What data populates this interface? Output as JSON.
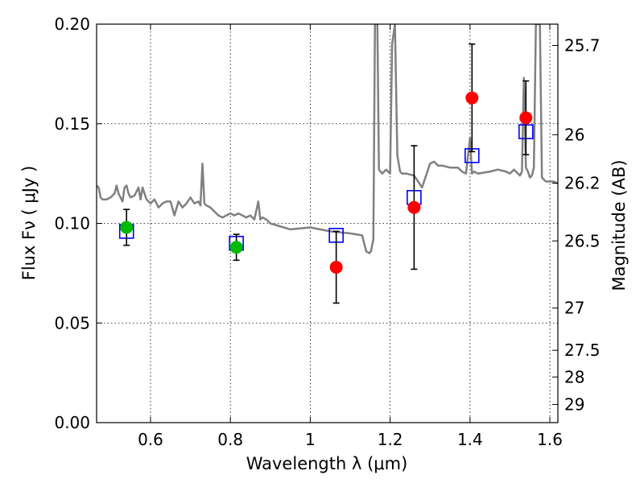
{
  "chart_data": {
    "type": "scatter",
    "xlabel": "Wavelength  λ (μm)",
    "ylabel": "Flux  Fν  ( μJy )",
    "y2label": "Magnitude (AB)",
    "xlim": [
      0.465,
      1.62
    ],
    "ylim": [
      0.0,
      0.2
    ],
    "grid": true,
    "x_ticks": [
      {
        "value": 0.6,
        "label": "0.6"
      },
      {
        "value": 0.8,
        "label": "0.8"
      },
      {
        "value": 1.0,
        "label": "1"
      },
      {
        "value": 1.2,
        "label": "1.2"
      },
      {
        "value": 1.4,
        "label": "1.4"
      },
      {
        "value": 1.6,
        "label": "1.6"
      }
    ],
    "y_ticks": [
      {
        "value": 0.0,
        "label": "0.00"
      },
      {
        "value": 0.05,
        "label": "0.05"
      },
      {
        "value": 0.1,
        "label": "0.10"
      },
      {
        "value": 0.15,
        "label": "0.15"
      },
      {
        "value": 0.2,
        "label": "0.20"
      }
    ],
    "mag_ticks": [
      {
        "flux": 0.1893,
        "label": "25.7"
      },
      {
        "flux": 0.1445,
        "label": "26"
      },
      {
        "flux": 0.1202,
        "label": "26.2"
      },
      {
        "flux": 0.0912,
        "label": "26.5"
      },
      {
        "flux": 0.0575,
        "label": "27"
      },
      {
        "flux": 0.0363,
        "label": "27.5"
      },
      {
        "flux": 0.0229,
        "label": "28"
      },
      {
        "flux": 0.0091,
        "label": "29"
      }
    ],
    "series": [
      {
        "name": "model-spectrum",
        "kind": "line",
        "color": "#808080",
        "x": [
          0.465,
          0.47,
          0.475,
          0.48,
          0.49,
          0.5,
          0.51,
          0.515,
          0.52,
          0.53,
          0.535,
          0.54,
          0.545,
          0.55,
          0.56,
          0.57,
          0.575,
          0.58,
          0.585,
          0.59,
          0.6,
          0.61,
          0.62,
          0.63,
          0.64,
          0.65,
          0.66,
          0.67,
          0.68,
          0.69,
          0.7,
          0.71,
          0.72,
          0.725,
          0.73,
          0.735,
          0.74,
          0.75,
          0.76,
          0.77,
          0.78,
          0.79,
          0.8,
          0.81,
          0.82,
          0.83,
          0.84,
          0.85,
          0.86,
          0.87,
          0.875,
          0.88,
          0.89,
          0.9,
          0.95,
          1.0,
          1.05,
          1.1,
          1.13,
          1.14,
          1.148,
          1.152,
          1.158,
          1.162,
          1.165,
          1.168,
          1.172,
          1.18,
          1.19,
          1.2,
          1.205,
          1.212,
          1.218,
          1.225,
          1.23,
          1.24,
          1.26,
          1.28,
          1.3,
          1.31,
          1.315,
          1.32,
          1.33,
          1.35,
          1.37,
          1.38,
          1.39,
          1.4,
          1.405,
          1.41,
          1.42,
          1.45,
          1.47,
          1.49,
          1.5,
          1.51,
          1.52,
          1.525,
          1.53,
          1.535,
          1.54,
          1.545,
          1.55,
          1.555,
          1.56,
          1.565,
          1.57,
          1.575,
          1.58,
          1.59,
          1.6,
          1.61,
          1.62
        ],
        "y": [
          0.119,
          0.118,
          0.113,
          0.112,
          0.112,
          0.113,
          0.115,
          0.119,
          0.115,
          0.111,
          0.118,
          0.119,
          0.115,
          0.113,
          0.114,
          0.118,
          0.112,
          0.118,
          0.115,
          0.112,
          0.11,
          0.112,
          0.108,
          0.11,
          0.111,
          0.111,
          0.104,
          0.111,
          0.108,
          0.11,
          0.113,
          0.11,
          0.111,
          0.109,
          0.13,
          0.11,
          0.109,
          0.108,
          0.106,
          0.104,
          0.103,
          0.104,
          0.105,
          0.104,
          0.105,
          0.104,
          0.103,
          0.104,
          0.102,
          0.111,
          0.102,
          0.103,
          0.102,
          0.1,
          0.097,
          0.098,
          0.096,
          0.095,
          0.094,
          0.086,
          0.085,
          0.086,
          0.092,
          0.2,
          0.2,
          0.2,
          0.127,
          0.125,
          0.127,
          0.125,
          0.19,
          0.2,
          0.134,
          0.126,
          0.125,
          0.125,
          0.124,
          0.118,
          0.13,
          0.131,
          0.13,
          0.129,
          0.129,
          0.128,
          0.128,
          0.126,
          0.125,
          0.143,
          0.125,
          0.126,
          0.125,
          0.126,
          0.127,
          0.126,
          0.125,
          0.127,
          0.125,
          0.124,
          0.126,
          0.173,
          0.128,
          0.126,
          0.123,
          0.124,
          0.128,
          0.2,
          0.2,
          0.2,
          0.123,
          0.121,
          0.121,
          0.121,
          0.12
        ]
      },
      {
        "name": "model-band-flux",
        "kind": "square",
        "color": "#0000ff",
        "x": [
          0.54,
          0.815,
          1.065,
          1.26,
          1.405,
          1.54
        ],
        "y": [
          0.096,
          0.09,
          0.094,
          0.113,
          0.134,
          0.146
        ]
      },
      {
        "name": "observed-optical",
        "kind": "point",
        "color": "#00bb00",
        "x": [
          0.54,
          0.815
        ],
        "y": [
          0.098,
          0.088
        ],
        "yerr": [
          0.009,
          0.0065
        ]
      },
      {
        "name": "observed-nir",
        "kind": "point",
        "color": "#ff0000",
        "x": [
          1.065,
          1.26,
          1.405,
          1.54
        ],
        "y": [
          0.078,
          0.108,
          0.163,
          0.153
        ],
        "yerr": [
          0.018,
          0.031,
          0.027,
          0.0185
        ]
      }
    ]
  }
}
